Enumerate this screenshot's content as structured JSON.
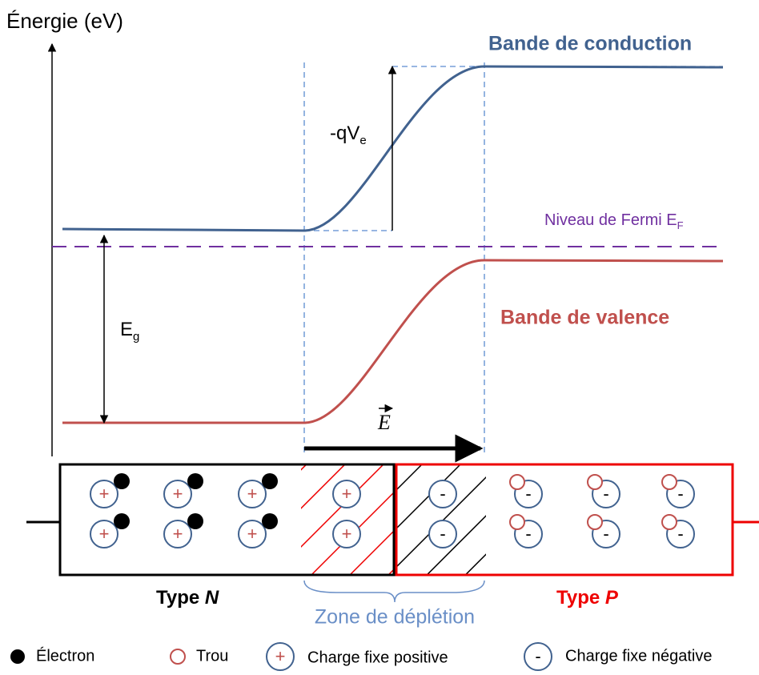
{
  "axis_label": "Énergie (eV)",
  "bands": {
    "conduction": "Bande de conduction",
    "valence": "Bande de valence"
  },
  "fermi": {
    "main": "Niveau  de Fermi E",
    "sub": "F"
  },
  "voltage": {
    "main": "-qV",
    "sub": "e"
  },
  "gap": {
    "main": "E",
    "sub": "g"
  },
  "field": "E",
  "symbols": {
    "positive": "+",
    "negative": "-"
  },
  "regions": {
    "n": {
      "prefix": "Type ",
      "letter": "N"
    },
    "p": {
      "prefix": "Type ",
      "letter": "P"
    },
    "depletion": "Zone de déplétion"
  },
  "legend": {
    "electron": "Électron",
    "hole": "Trou",
    "positive": "Charge fixe positive",
    "negative": "Charge fixe négative"
  }
}
